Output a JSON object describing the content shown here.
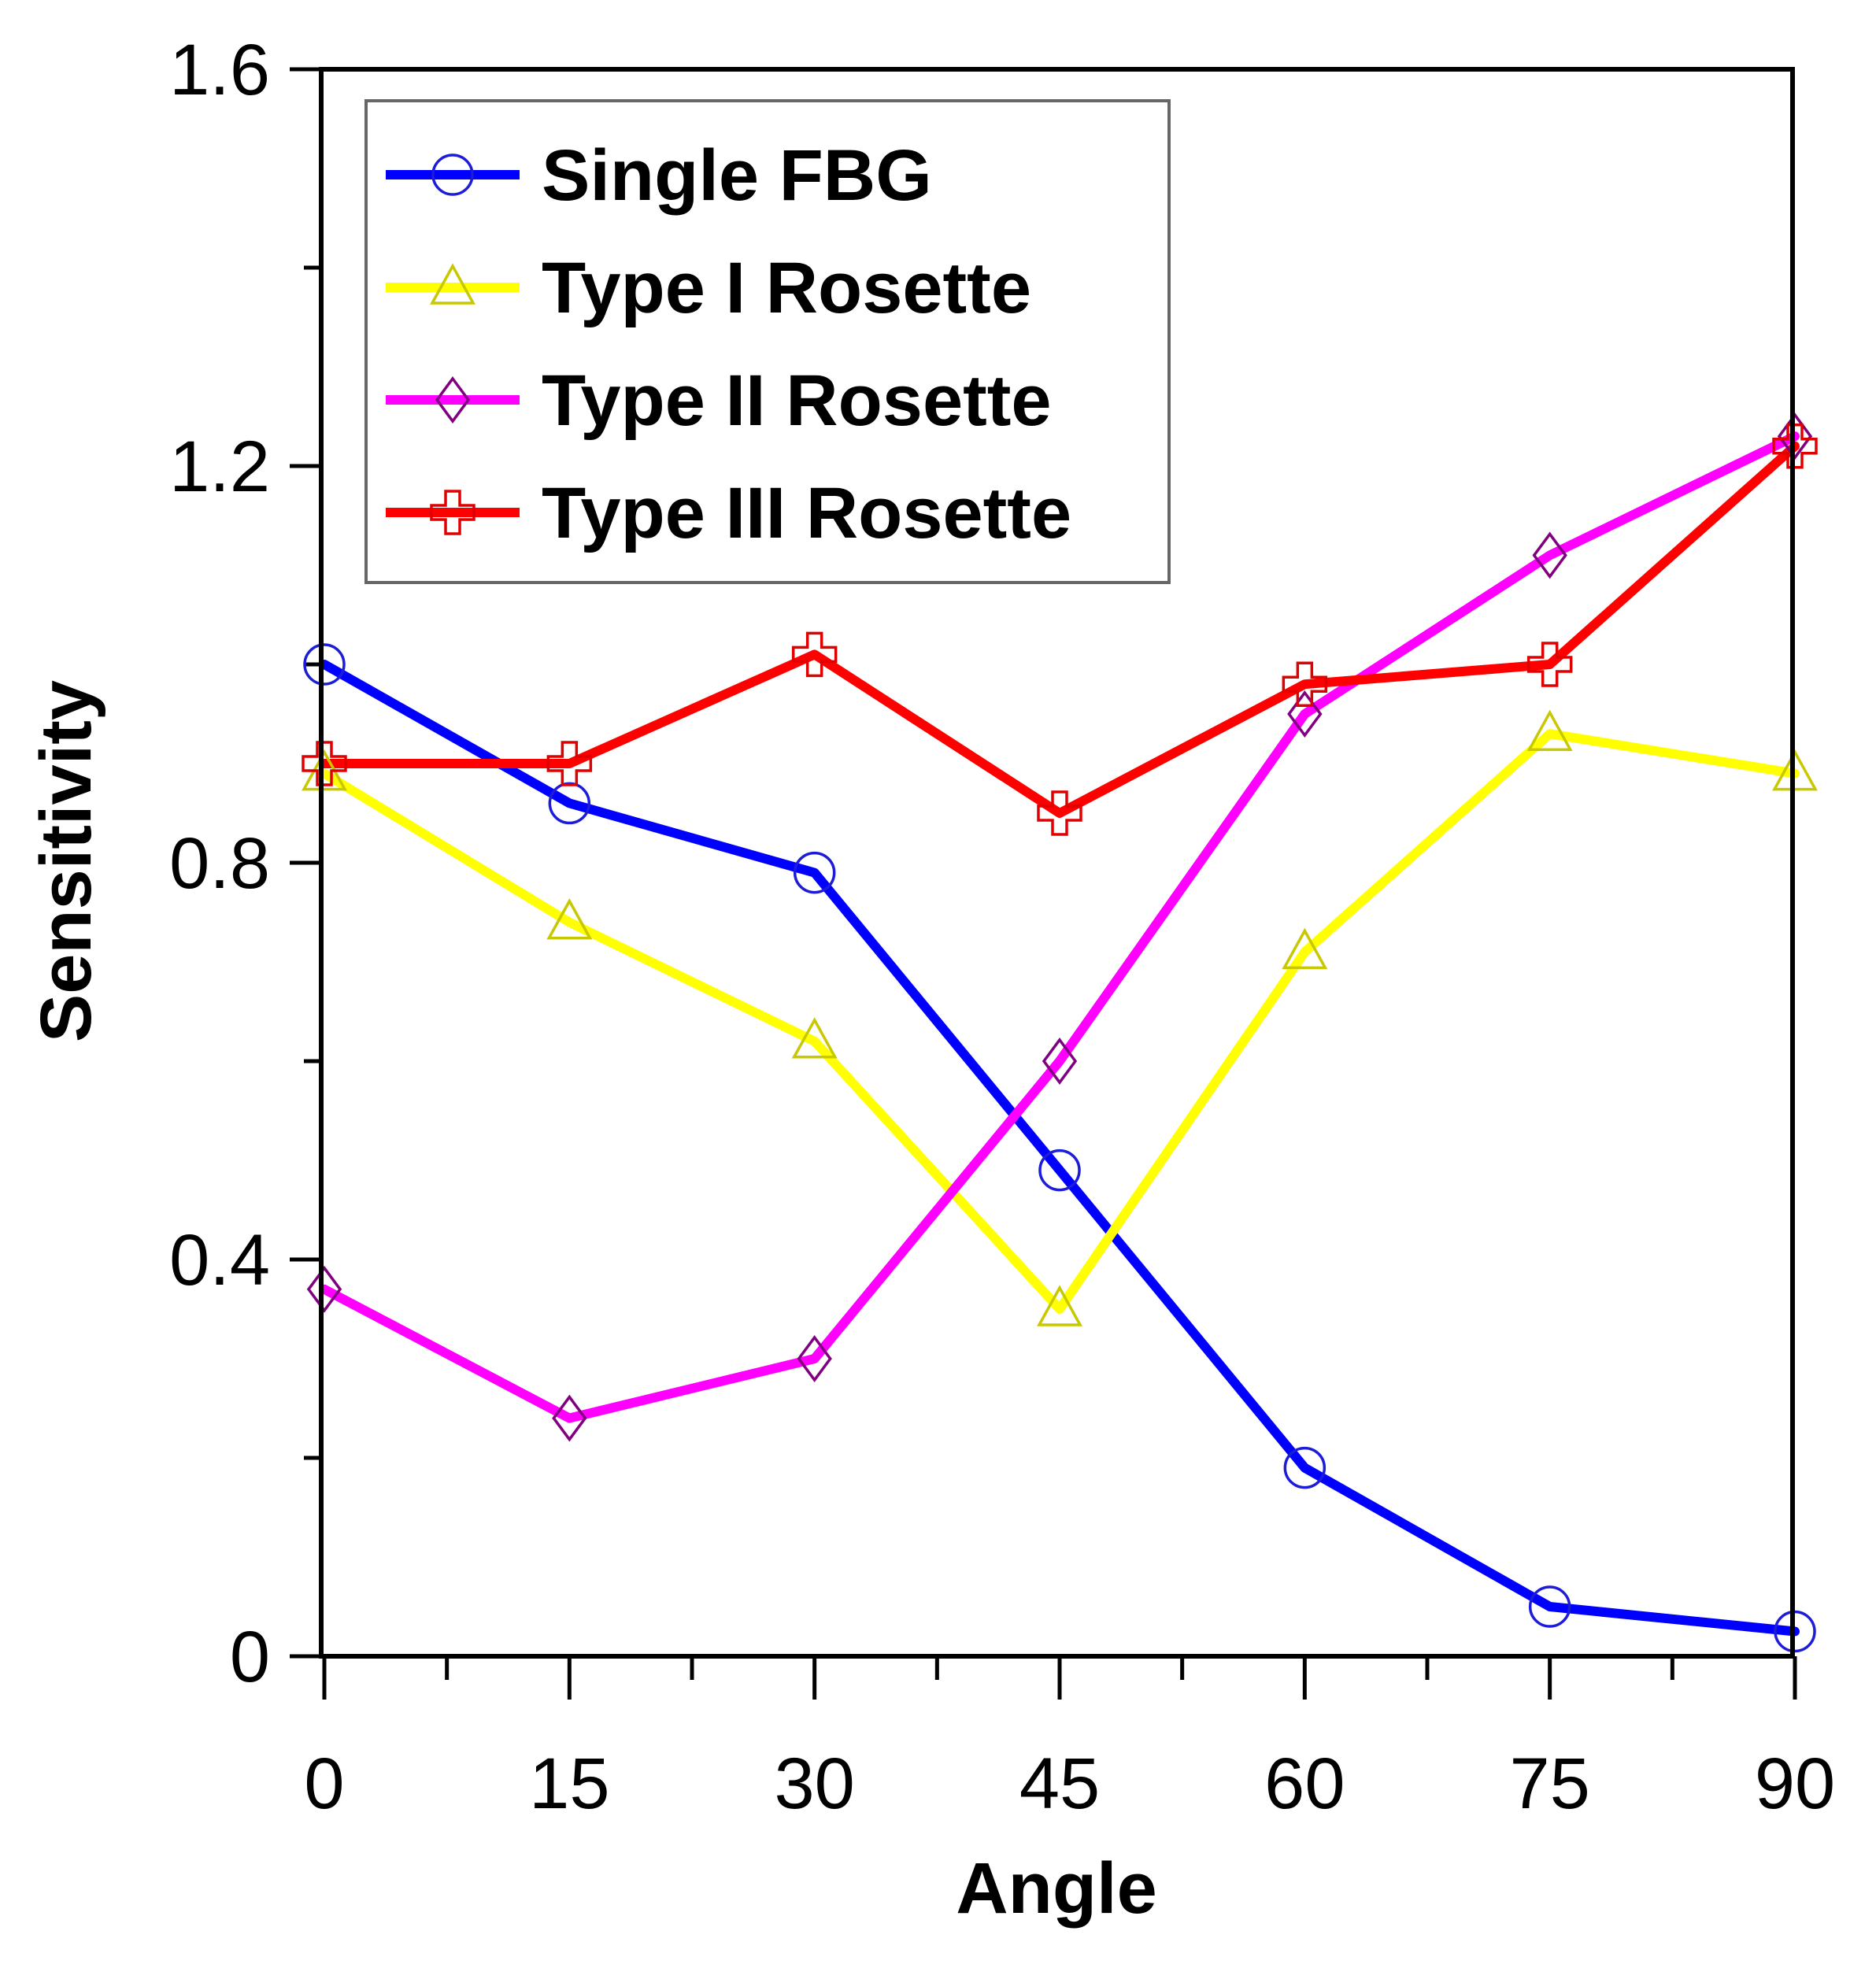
{
  "chart_data": {
    "type": "line",
    "title": "",
    "xlabel": "Angle",
    "ylabel": "Sensitivity",
    "x": [
      0,
      15,
      30,
      45,
      60,
      75,
      90
    ],
    "xlim": [
      0,
      90
    ],
    "ylim": [
      0,
      1.6
    ],
    "xticks": [
      0,
      15,
      30,
      45,
      60,
      75,
      90
    ],
    "xtick_labels": [
      "0",
      "15",
      "30",
      "45",
      "60",
      "75",
      "90"
    ],
    "yticks": [
      0,
      0.4,
      0.8,
      1.2,
      1.6
    ],
    "ytick_labels": [
      "0",
      "0.4",
      "0.8",
      "1.2",
      "1.6"
    ],
    "grid": false,
    "legend_position": "top-left",
    "series": [
      {
        "name": "Single FBG",
        "color": "#0000ff",
        "marker_color": "#1c1cd9",
        "marker": "circle",
        "values": [
          1.0,
          0.86,
          0.79,
          0.49,
          0.19,
          0.05,
          0.025
        ]
      },
      {
        "name": "Type I Rosette",
        "color": "#ffff00",
        "marker_color": "#c8c800",
        "marker": "triangle",
        "values": [
          0.89,
          0.74,
          0.62,
          0.35,
          0.71,
          0.93,
          0.89
        ]
      },
      {
        "name": "Type II Rosette",
        "color": "#ff00ff",
        "marker_color": "#800080",
        "marker": "diamond",
        "values": [
          0.37,
          0.24,
          0.3,
          0.6,
          0.95,
          1.11,
          1.23
        ]
      },
      {
        "name": "Type III Rosette",
        "color": "#ff0000",
        "marker_color": "#e00000",
        "marker": "plus",
        "values": [
          0.9,
          0.9,
          1.01,
          0.85,
          0.98,
          1.0,
          1.22
        ]
      }
    ]
  }
}
